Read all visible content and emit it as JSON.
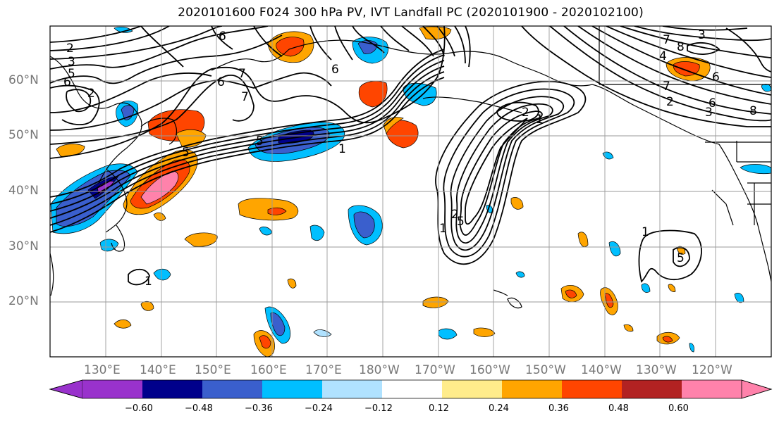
{
  "title": "2020101600 F024 300 hPa PV, IVT Landfall PC (2020101900 - 2020102100)",
  "latitude_labels": [
    "60°N",
    "50°N",
    "40°N",
    "30°N",
    "20°N"
  ],
  "longitude_labels": [
    "130°E",
    "140°E",
    "150°E",
    "160°E",
    "170°E",
    "180°W",
    "170°W",
    "160°W",
    "150°W",
    "140°W",
    "130°W",
    "120°W"
  ],
  "colorbar": {
    "colors": [
      "#9932cc",
      "#00008b",
      "#3a5fcd",
      "#00bfff",
      "#b0e2ff",
      "#ffffff",
      "#ffec8b",
      "#ffa500",
      "#ff4500",
      "#b22222",
      "#ff82ab"
    ],
    "tick_labels": [
      "−0.60",
      "−0.48",
      "−0.36",
      "−0.24",
      "−0.12",
      "0.12",
      "0.24",
      "0.36",
      "0.48",
      "0.60"
    ],
    "extend": "both"
  },
  "contour_labels": [
    "2",
    "3",
    "5",
    "6",
    "6",
    "7",
    "6",
    "6",
    "7",
    "1",
    "5",
    "5",
    "1",
    "2",
    "1",
    "5",
    "2",
    "1",
    "5",
    "3",
    "4",
    "6",
    "7",
    "8",
    "6",
    "3",
    "2",
    "7",
    "8",
    "1",
    "2"
  ]
}
